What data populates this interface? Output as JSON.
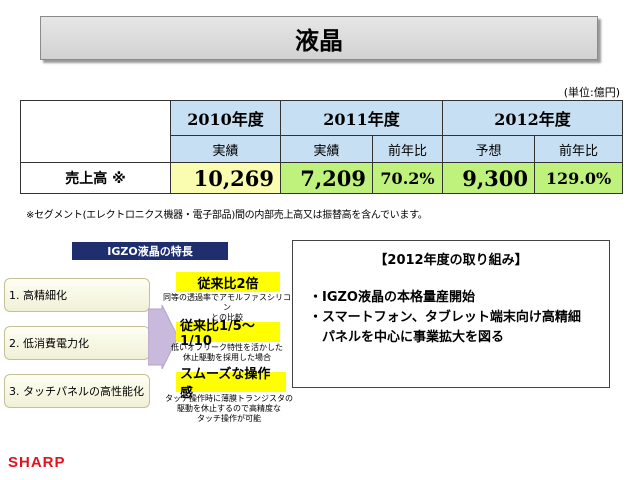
{
  "title": "液晶",
  "unit": "(単位:億円)",
  "table": {
    "years": [
      "2010年度",
      "2011年度",
      "2012年度"
    ],
    "subheaders": [
      "実績",
      "実績",
      "前年比",
      "予想",
      "前年比"
    ],
    "row_label": "売上高 ※",
    "values": [
      "10,269",
      "7,209",
      "70.2%",
      "9,300",
      "129.0%"
    ]
  },
  "footnote": "※セグメント(エレクトロニクス機器・電子部品)間の内部売上高又は振替高を含んでいます。",
  "igzo": {
    "header": "IGZO液晶の特長",
    "features": [
      "1. 高精細化",
      "2. 低消費電力化",
      "3. タッチパネルの高性能化"
    ],
    "callouts": [
      {
        "title": "従来比2倍",
        "desc_lines": [
          "同等の透過率でアモルファスシリコン",
          "との比較"
        ]
      },
      {
        "title": "従来比1/5〜1/10",
        "desc_lines": [
          "低いオフリーク特性を活かした",
          "休止駆動を採用した場合"
        ]
      },
      {
        "title": "スムーズな操作感",
        "desc_lines": [
          "タッチ操作時に薄膜トランジスタの",
          "駆動を休止するので高精度な",
          "タッチ操作が可能"
        ]
      }
    ]
  },
  "initiative": {
    "header": "【2012年度の取り組み】",
    "lines": [
      "・IGZO液晶の本格量産開始",
      "・スマートフォン、タブレット端末向け高精細",
      "　パネルを中心に事業拡大を図る"
    ]
  },
  "logo": "SHARP"
}
